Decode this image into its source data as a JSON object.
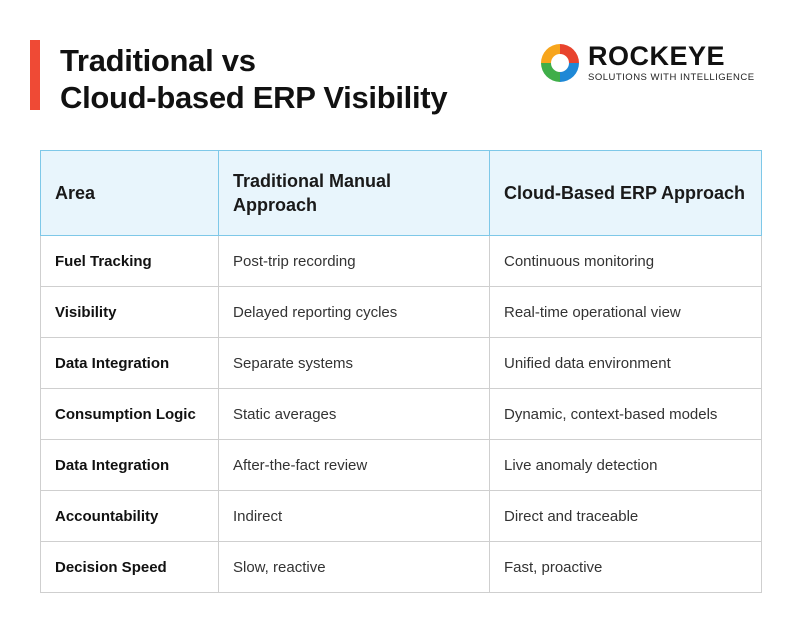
{
  "title": {
    "line1": "Traditional vs",
    "line2": "Cloud-based ERP Visibility"
  },
  "logo": {
    "name": "ROCKEYE",
    "tagline": "SOLUTIONS WITH INTELLIGENCE",
    "colors": [
      "#e8432d",
      "#f7a51c",
      "#3fae49",
      "#1e88d6"
    ]
  },
  "accent_color": "#ef4a35",
  "table": {
    "headers": [
      "Area",
      "Traditional Manual Approach",
      "Cloud-Based ERP Approach"
    ],
    "rows": [
      [
        "Fuel Tracking",
        "Post-trip recording",
        "Continuous monitoring"
      ],
      [
        "Visibility",
        "Delayed reporting cycles",
        "Real-time operational view"
      ],
      [
        "Data Integration",
        "Separate systems",
        "Unified data environment"
      ],
      [
        "Consumption Logic",
        "Static averages",
        "Dynamic, context-based models"
      ],
      [
        "Data Integration",
        "After-the-fact review",
        "Live anomaly detection"
      ],
      [
        "Accountability",
        "Indirect",
        "Direct and traceable"
      ],
      [
        "Decision Speed",
        "Slow, reactive",
        "Fast, proactive"
      ]
    ]
  }
}
